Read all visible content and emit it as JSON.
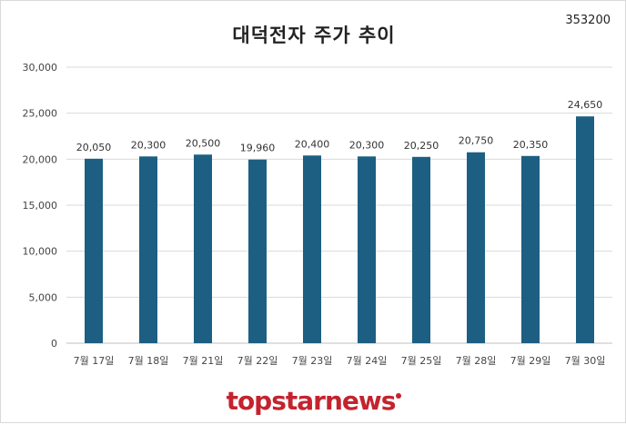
{
  "title": "대덕전자 주가 추이",
  "stock_code": "353200",
  "brand": "topstarnews",
  "colors": {
    "bar": "#1d5f82",
    "grid": "#d9d9d9",
    "brand": "#c4232e"
  },
  "chart_data": {
    "type": "bar",
    "title": "대덕전자 주가 추이",
    "categories": [
      "7월 17일",
      "7월 18일",
      "7월 21일",
      "7월 22일",
      "7월 23일",
      "7월 24일",
      "7월 25일",
      "7월 28일",
      "7월 29일",
      "7월 30일"
    ],
    "values": [
      20050,
      20300,
      20500,
      19960,
      20400,
      20300,
      20250,
      20750,
      20350,
      24650
    ],
    "value_labels": [
      "20,050",
      "20,300",
      "20,500",
      "19,960",
      "20,400",
      "20,300",
      "20,250",
      "20,750",
      "20,350",
      "24,650"
    ],
    "ylim": [
      0,
      30000
    ],
    "yticks": [
      0,
      5000,
      10000,
      15000,
      20000,
      25000,
      30000
    ],
    "ytick_labels": [
      "0",
      "5,000",
      "10,000",
      "15,000",
      "20,000",
      "25,000",
      "30,000"
    ],
    "grid": true,
    "legend": "none"
  }
}
